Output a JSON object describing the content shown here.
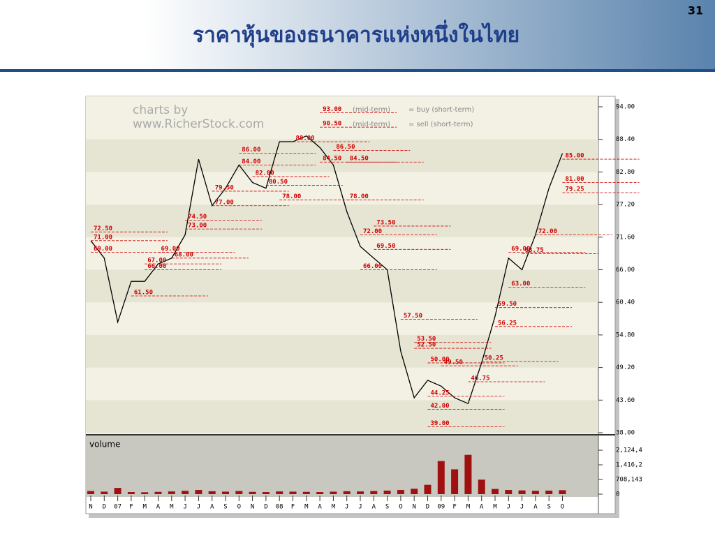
{
  "slide_number": "31",
  "title": "ราคาหุ้นของธนาคารแห่งหนึ่งในไทย",
  "chart_data": [
    {
      "type": "line",
      "watermark": [
        "charts by",
        "www.RicherStock.com"
      ],
      "legend_texts": [
        "(mid-term)",
        "= buy (short-term)",
        "(mid-term)",
        "= sell (short-term)"
      ],
      "categories": [
        "N",
        "D",
        "07",
        "F",
        "M",
        "A",
        "M",
        "J",
        "J",
        "A",
        "S",
        "O",
        "N",
        "D",
        "08",
        "F",
        "M",
        "A",
        "M",
        "J",
        "J",
        "A",
        "S",
        "O",
        "N",
        "D",
        "09",
        "F",
        "M",
        "A",
        "M",
        "J",
        "J",
        "A",
        "S",
        "O"
      ],
      "series": [
        {
          "name": "price",
          "color": "#000000",
          "values": [
            71,
            68,
            57,
            64,
            64,
            67,
            68,
            72,
            85,
            77,
            80,
            84,
            81,
            80,
            88,
            88,
            89,
            87,
            84,
            76,
            70,
            68,
            66,
            52,
            44,
            47,
            46,
            44,
            43,
            50,
            58,
            68,
            66,
            72,
            80,
            86
          ]
        }
      ],
      "ylim": [
        38,
        94
      ],
      "yticks": [
        {
          "value": 38,
          "label": "38.00"
        },
        {
          "value": 43.6,
          "label": "43.60"
        },
        {
          "value": 49.2,
          "label": "49.20"
        },
        {
          "value": 54.8,
          "label": "54.80"
        },
        {
          "value": 60.4,
          "label": "60.40"
        },
        {
          "value": 66,
          "label": "66.00"
        },
        {
          "value": 71.6,
          "label": "71.60"
        },
        {
          "value": 77.2,
          "label": "77.20"
        },
        {
          "value": 82.8,
          "label": "82.80"
        },
        {
          "value": 88.4,
          "label": "88.40"
        },
        {
          "value": 94,
          "label": "94.00"
        }
      ],
      "annotations": [
        {
          "index": 0,
          "value": 72.5,
          "label": "72.50"
        },
        {
          "index": 0,
          "value": 71,
          "label": "71.00"
        },
        {
          "index": 0,
          "value": 69,
          "label": "69.00"
        },
        {
          "index": 3,
          "value": 61.5,
          "label": "61.50"
        },
        {
          "index": 4,
          "value": 67,
          "label": "67.00"
        },
        {
          "index": 4,
          "value": 66,
          "label": "66.00"
        },
        {
          "index": 5,
          "value": 69,
          "label": "69.00"
        },
        {
          "index": 6,
          "value": 68,
          "label": "68.00"
        },
        {
          "index": 7,
          "value": 74.5,
          "label": "74.50"
        },
        {
          "index": 7,
          "value": 73,
          "label": "73.00"
        },
        {
          "index": 9,
          "value": 79.5,
          "label": "79.50"
        },
        {
          "index": 9,
          "value": 77,
          "label": "77.00"
        },
        {
          "index": 11,
          "value": 86,
          "label": "86.00"
        },
        {
          "index": 11,
          "value": 84,
          "label": "84.00"
        },
        {
          "index": 12,
          "value": 82,
          "label": "82.00"
        },
        {
          "index": 13,
          "value": 80.5,
          "label": "80.50"
        },
        {
          "index": 14,
          "value": 78,
          "label": "78.00"
        },
        {
          "index": 15,
          "value": 88,
          "label": "88.00"
        },
        {
          "index": 17,
          "value": 93,
          "label": "93.00"
        },
        {
          "index": 17,
          "value": 90.5,
          "label": "90.50"
        },
        {
          "index": 18,
          "value": 86.5,
          "label": "86.50"
        },
        {
          "index": 17,
          "value": 84.5,
          "label": "84.50"
        },
        {
          "index": 19,
          "value": 84.5,
          "label": "84.50"
        },
        {
          "index": 19,
          "value": 78,
          "label": "78.00"
        },
        {
          "index": 21,
          "value": 73.5,
          "label": "73.50"
        },
        {
          "index": 20,
          "value": 72,
          "label": "72.00"
        },
        {
          "index": 21,
          "value": 69.5,
          "label": "69.50"
        },
        {
          "index": 20,
          "value": 66,
          "label": "66.00"
        },
        {
          "index": 23,
          "value": 57.5,
          "label": "57.50"
        },
        {
          "index": 24,
          "value": 53.5,
          "label": "53.50"
        },
        {
          "index": 24,
          "value": 52.5,
          "label": "52.50"
        },
        {
          "index": 25,
          "value": 50,
          "label": "50.00"
        },
        {
          "index": 26,
          "value": 49.5,
          "label": "49.50"
        },
        {
          "index": 25,
          "value": 44.25,
          "label": "44.25"
        },
        {
          "index": 25,
          "value": 42,
          "label": "42.00"
        },
        {
          "index": 25,
          "value": 39,
          "label": "39.00"
        },
        {
          "index": 28,
          "value": 46.75,
          "label": "46.75"
        },
        {
          "index": 29,
          "value": 50.25,
          "label": "50.25"
        },
        {
          "index": 30,
          "value": 56.25,
          "label": "56.25"
        },
        {
          "index": 30,
          "value": 59.5,
          "label": "59.50"
        },
        {
          "index": 31,
          "value": 63,
          "label": "63.00"
        },
        {
          "index": 31,
          "value": 69,
          "label": "69.00"
        },
        {
          "index": 32,
          "value": 68.75,
          "label": "68.75"
        },
        {
          "index": 33,
          "value": 72,
          "label": "72.00"
        },
        {
          "index": 35,
          "value": 85,
          "label": "85.00"
        },
        {
          "index": 35,
          "value": 81,
          "label": "81.00"
        },
        {
          "index": 35,
          "value": 79.25,
          "label": "79.25"
        }
      ]
    },
    {
      "type": "bar",
      "title": "volume",
      "color": "#a01010",
      "values": [
        150000,
        120000,
        300000,
        100000,
        90000,
        110000,
        130000,
        160000,
        200000,
        140000,
        120000,
        150000,
        110000,
        100000,
        130000,
        120000,
        110000,
        100000,
        120000,
        140000,
        130000,
        150000,
        170000,
        200000,
        260000,
        450000,
        1600000,
        1200000,
        1900000,
        700000,
        250000,
        200000,
        180000,
        160000,
        170000,
        190000
      ],
      "ylim": [
        0,
        2700000
      ],
      "yticks": [
        0,
        {
          "value": 708143,
          "label": "708,143"
        },
        {
          "value": 1416286,
          "label": "1,416,2"
        },
        {
          "value": 2124429,
          "label": "2,124,4"
        }
      ]
    }
  ]
}
